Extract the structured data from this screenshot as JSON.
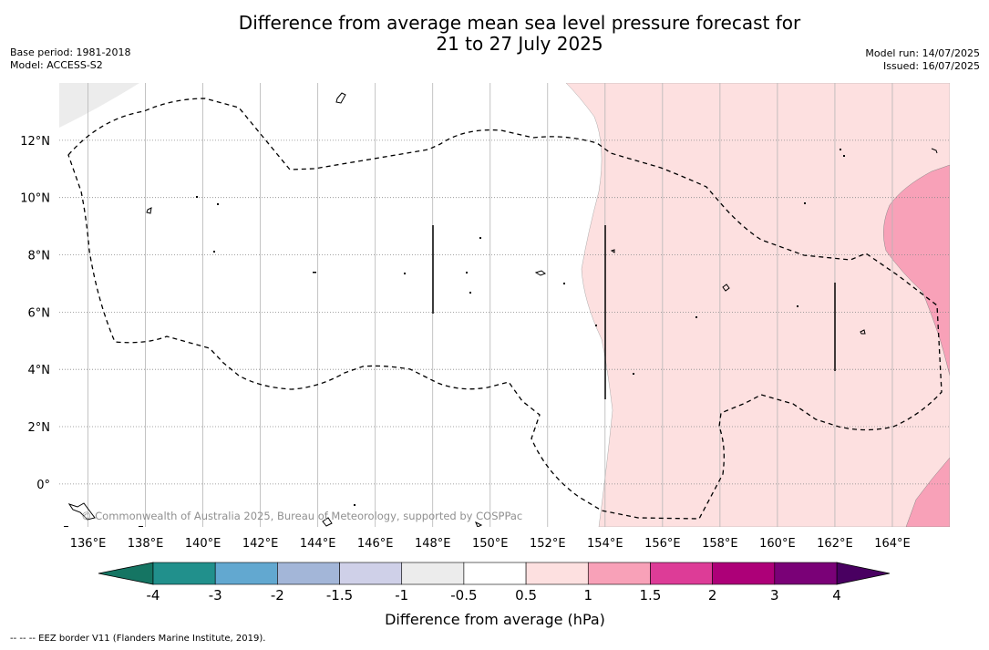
{
  "title_line1": "Difference from average mean sea level pressure forecast for",
  "title_line2": "21 to 27 July 2025",
  "meta_left": [
    "Base period: 1981-2018",
    "Model: ACCESS-S2"
  ],
  "meta_right": [
    "Model run: 14/07/2025",
    "Issued: 16/07/2025"
  ],
  "map": {
    "lon_range": [
      135,
      166
    ],
    "lat_range": [
      -1.5,
      14
    ],
    "lon_ticks": [
      "136°E",
      "138°E",
      "140°E",
      "142°E",
      "144°E",
      "146°E",
      "148°E",
      "150°E",
      "152°E",
      "154°E",
      "156°E",
      "158°E",
      "160°E",
      "162°E",
      "164°E"
    ],
    "lat_ticks": [
      "0°",
      "2°N",
      "4°N",
      "6°N",
      "8°N",
      "10°N",
      "12°N"
    ],
    "copyright": "© Commonwealth of Australia 2025, Bureau of Meteorology, supported by COSPPac",
    "grid": true
  },
  "colorbar": {
    "ticks": [
      "-4",
      "-3",
      "-2",
      "-1.5",
      "-1",
      "-0.5",
      "0.5",
      "1",
      "1.5",
      "2",
      "3",
      "4"
    ],
    "colors": [
      "#21908c",
      "#62a8d0",
      "#a3b6d8",
      "#cfd0e8",
      "#ececec",
      "#ffffff",
      "#fde0e0",
      "#f8a1b8",
      "#dd3c97",
      "#ad0078",
      "#7a0177"
    ],
    "under_color": "#157563",
    "over_color": "#490061",
    "label": "Difference from average (hPa)"
  },
  "footer": "--  --  -- EEZ border V11 (Flanders Marine Institute, 2019)."
}
